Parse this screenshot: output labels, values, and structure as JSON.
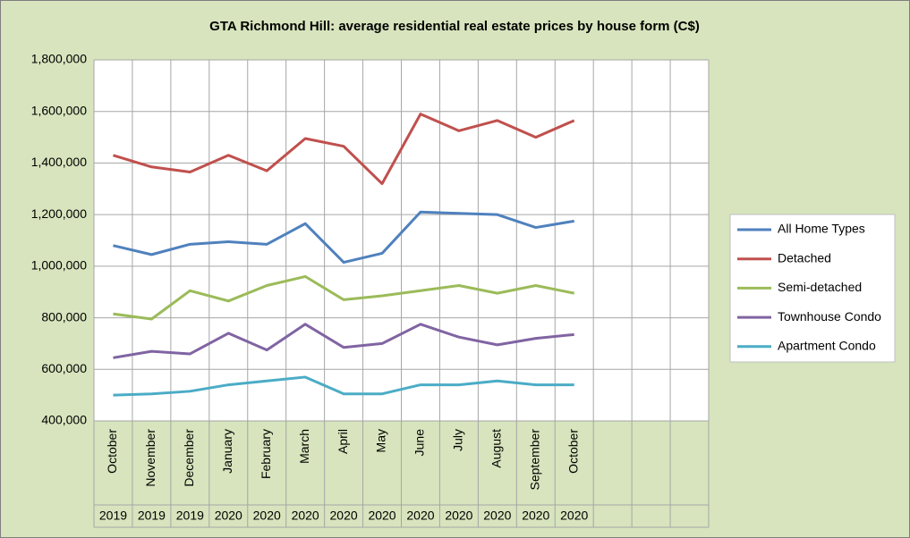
{
  "chart_data": {
    "type": "line",
    "title": "GTA Richmond Hill: average residential real estate prices by house form (C$)",
    "categories": [
      "October",
      "November",
      "December",
      "January",
      "February",
      "March",
      "April",
      "May",
      "June",
      "July",
      "August",
      "September",
      "October",
      null,
      null,
      null
    ],
    "years": [
      "2019",
      "2019",
      "2019",
      "2020",
      "2020",
      "2020",
      "2020",
      "2020",
      "2020",
      "2020",
      "2020",
      "2020",
      "2020",
      null,
      null,
      null
    ],
    "series": [
      {
        "name": "All Home Types",
        "color": "#4f81bd",
        "values": [
          1080000,
          1045000,
          1085000,
          1095000,
          1085000,
          1165000,
          1015000,
          1050000,
          1210000,
          1205000,
          1200000,
          1150000,
          1175000,
          null,
          null,
          null
        ]
      },
      {
        "name": "Detached",
        "color": "#c0504d",
        "values": [
          1430000,
          1385000,
          1365000,
          1430000,
          1370000,
          1495000,
          1465000,
          1320000,
          1590000,
          1525000,
          1565000,
          1500000,
          1565000,
          null,
          null,
          null
        ]
      },
      {
        "name": "Semi-detached",
        "color": "#9bbb59",
        "values": [
          815000,
          795000,
          905000,
          865000,
          925000,
          960000,
          870000,
          885000,
          905000,
          925000,
          895000,
          925000,
          895000,
          null,
          null,
          null
        ]
      },
      {
        "name": "Townhouse Condo",
        "color": "#8064a2",
        "values": [
          645000,
          670000,
          660000,
          740000,
          675000,
          775000,
          685000,
          700000,
          775000,
          725000,
          695000,
          720000,
          735000,
          null,
          null,
          null
        ]
      },
      {
        "name": "Apartment Condo",
        "color": "#4bacc6",
        "values": [
          500000,
          505000,
          515000,
          540000,
          555000,
          570000,
          505000,
          505000,
          540000,
          540000,
          555000,
          540000,
          540000,
          null,
          null,
          null
        ]
      }
    ],
    "ylim": [
      400000,
      1800000
    ],
    "yticks": [
      {
        "value": 400000,
        "label": "400,000"
      },
      {
        "value": 600000,
        "label": "600,000"
      },
      {
        "value": 800000,
        "label": "800,000"
      },
      {
        "value": 1000000,
        "label": "1,000,000"
      },
      {
        "value": 1200000,
        "label": "1,200,000"
      },
      {
        "value": 1400000,
        "label": "1,400,000"
      },
      {
        "value": 1600000,
        "label": "1,600,000"
      },
      {
        "value": 1800000,
        "label": "1,800,000"
      }
    ],
    "grid": true,
    "legend": "right"
  }
}
